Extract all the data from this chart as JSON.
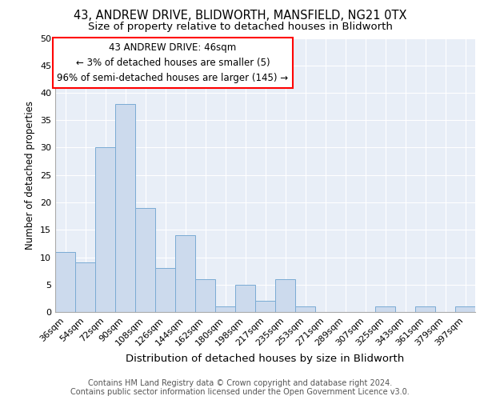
{
  "title1": "43, ANDREW DRIVE, BLIDWORTH, MANSFIELD, NG21 0TX",
  "title2": "Size of property relative to detached houses in Blidworth",
  "xlabel": "Distribution of detached houses by size in Blidworth",
  "ylabel": "Number of detached properties",
  "categories": [
    "36sqm",
    "54sqm",
    "72sqm",
    "90sqm",
    "108sqm",
    "126sqm",
    "144sqm",
    "162sqm",
    "180sqm",
    "198sqm",
    "217sqm",
    "235sqm",
    "253sqm",
    "271sqm",
    "289sqm",
    "307sqm",
    "325sqm",
    "343sqm",
    "361sqm",
    "379sqm",
    "397sqm"
  ],
  "values": [
    11,
    9,
    30,
    38,
    19,
    8,
    14,
    6,
    1,
    5,
    2,
    6,
    1,
    0,
    0,
    0,
    1,
    0,
    1,
    0,
    1
  ],
  "bar_color": "#ccdaed",
  "bar_edge_color": "#7aabd4",
  "ylim": [
    0,
    50
  ],
  "yticks": [
    0,
    5,
    10,
    15,
    20,
    25,
    30,
    35,
    40,
    45,
    50
  ],
  "annotation_title": "43 ANDREW DRIVE: 46sqm",
  "annotation_line1": "← 3% of detached houses are smaller (5)",
  "annotation_line2": "96% of semi-detached houses are larger (145) →",
  "footer1": "Contains HM Land Registry data © Crown copyright and database right 2024.",
  "footer2": "Contains public sector information licensed under the Open Government Licence v3.0.",
  "bg_color": "#e8eef7",
  "grid_color": "#ffffff",
  "title1_fontsize": 10.5,
  "title2_fontsize": 9.5,
  "xlabel_fontsize": 9.5,
  "ylabel_fontsize": 8.5,
  "tick_fontsize": 8,
  "footer_fontsize": 7,
  "ann_fontsize": 8.5
}
